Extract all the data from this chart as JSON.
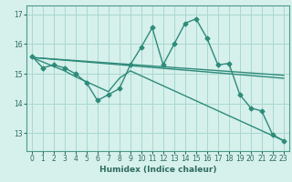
{
  "title": "",
  "xlabel": "Humidex (Indice chaleur)",
  "ylabel": "",
  "background_color": "#d6f0ec",
  "grid_color": "#a8d8d0",
  "line_color": "#2e8b7a",
  "xlim": [
    -0.5,
    23.5
  ],
  "ylim": [
    12.4,
    17.3
  ],
  "yticks": [
    13,
    14,
    15,
    16,
    17
  ],
  "xticks": [
    0,
    1,
    2,
    3,
    4,
    5,
    6,
    7,
    8,
    9,
    10,
    11,
    12,
    13,
    14,
    15,
    16,
    17,
    18,
    19,
    20,
    21,
    22,
    23
  ],
  "series": [
    {
      "x": [
        0,
        1,
        2,
        3,
        4,
        5,
        6,
        7,
        8,
        9,
        10,
        11,
        12,
        13,
        14,
        15,
        16,
        17,
        18,
        19,
        20,
        21,
        22,
        23
      ],
      "y": [
        15.6,
        15.2,
        15.3,
        15.2,
        15.0,
        14.7,
        14.1,
        14.3,
        14.5,
        15.3,
        15.9,
        16.55,
        15.3,
        16.0,
        16.7,
        16.85,
        16.2,
        15.3,
        15.35,
        14.3,
        13.85,
        13.75,
        12.95,
        12.75
      ],
      "marker": "D",
      "linewidth": 1.0,
      "markersize": 2.5
    },
    {
      "x": [
        0,
        23
      ],
      "y": [
        15.55,
        14.85
      ],
      "marker": null,
      "linewidth": 1.0,
      "markersize": 0
    },
    {
      "x": [
        0,
        23
      ],
      "y": [
        15.55,
        14.95
      ],
      "marker": null,
      "linewidth": 1.0,
      "markersize": 0
    },
    {
      "x": [
        0,
        3,
        4,
        7,
        8,
        9,
        23
      ],
      "y": [
        15.55,
        15.1,
        14.9,
        14.4,
        14.85,
        15.1,
        12.75
      ],
      "marker": null,
      "linewidth": 1.0,
      "markersize": 0
    }
  ]
}
